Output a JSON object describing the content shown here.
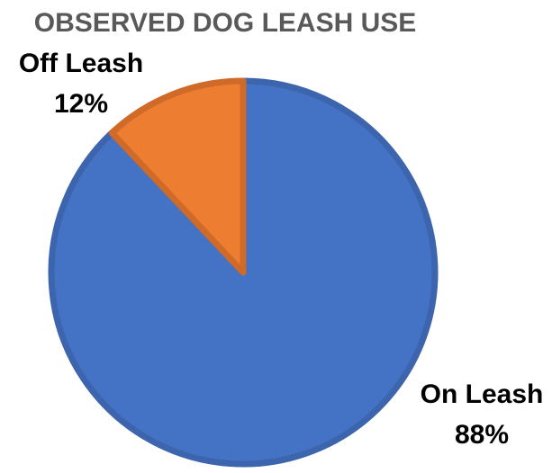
{
  "chart_data": {
    "type": "pie",
    "title": "OBSERVED DOG LEASH USE",
    "categories": [
      "On Leash",
      "Off Leash"
    ],
    "values": [
      88,
      12
    ],
    "value_labels": [
      "88%",
      "12%"
    ],
    "colors": [
      "#4472C4",
      "#ED7D31"
    ],
    "border_colors": [
      "#3D65AD",
      "#D06A28"
    ],
    "start_angle_deg": 0,
    "direction": "clockwise",
    "legend": "none",
    "label_placement": "outside"
  }
}
